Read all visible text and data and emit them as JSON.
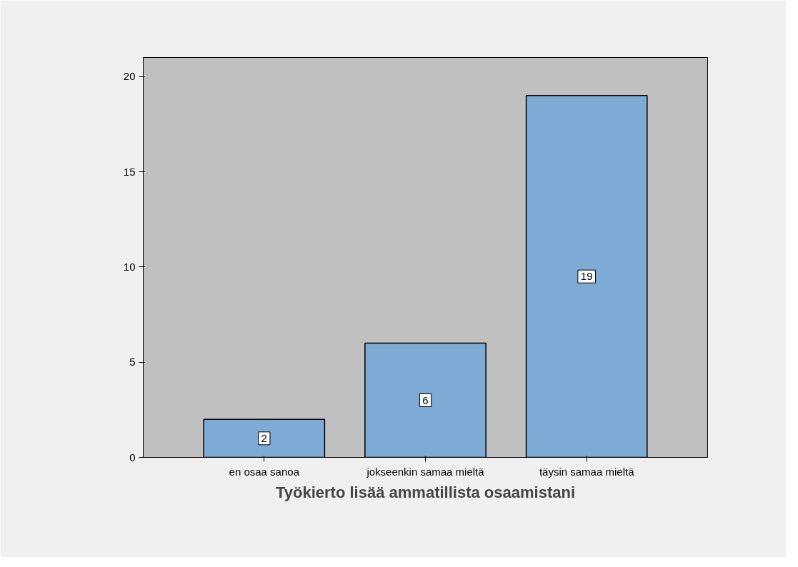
{
  "chart_data": {
    "type": "bar",
    "xlabel": "Työkierto lisää ammatillista osaamistani",
    "categories": [
      "en osaa sanoa",
      "jokseenkin samaa mieltä",
      "täysin samaa mieltä"
    ],
    "values": [
      2,
      6,
      19
    ],
    "color": "#7eaad6",
    "ylim": [
      0,
      21
    ],
    "yticks": [
      0,
      5,
      10,
      15,
      20
    ],
    "grid": false,
    "data_labels": true
  }
}
